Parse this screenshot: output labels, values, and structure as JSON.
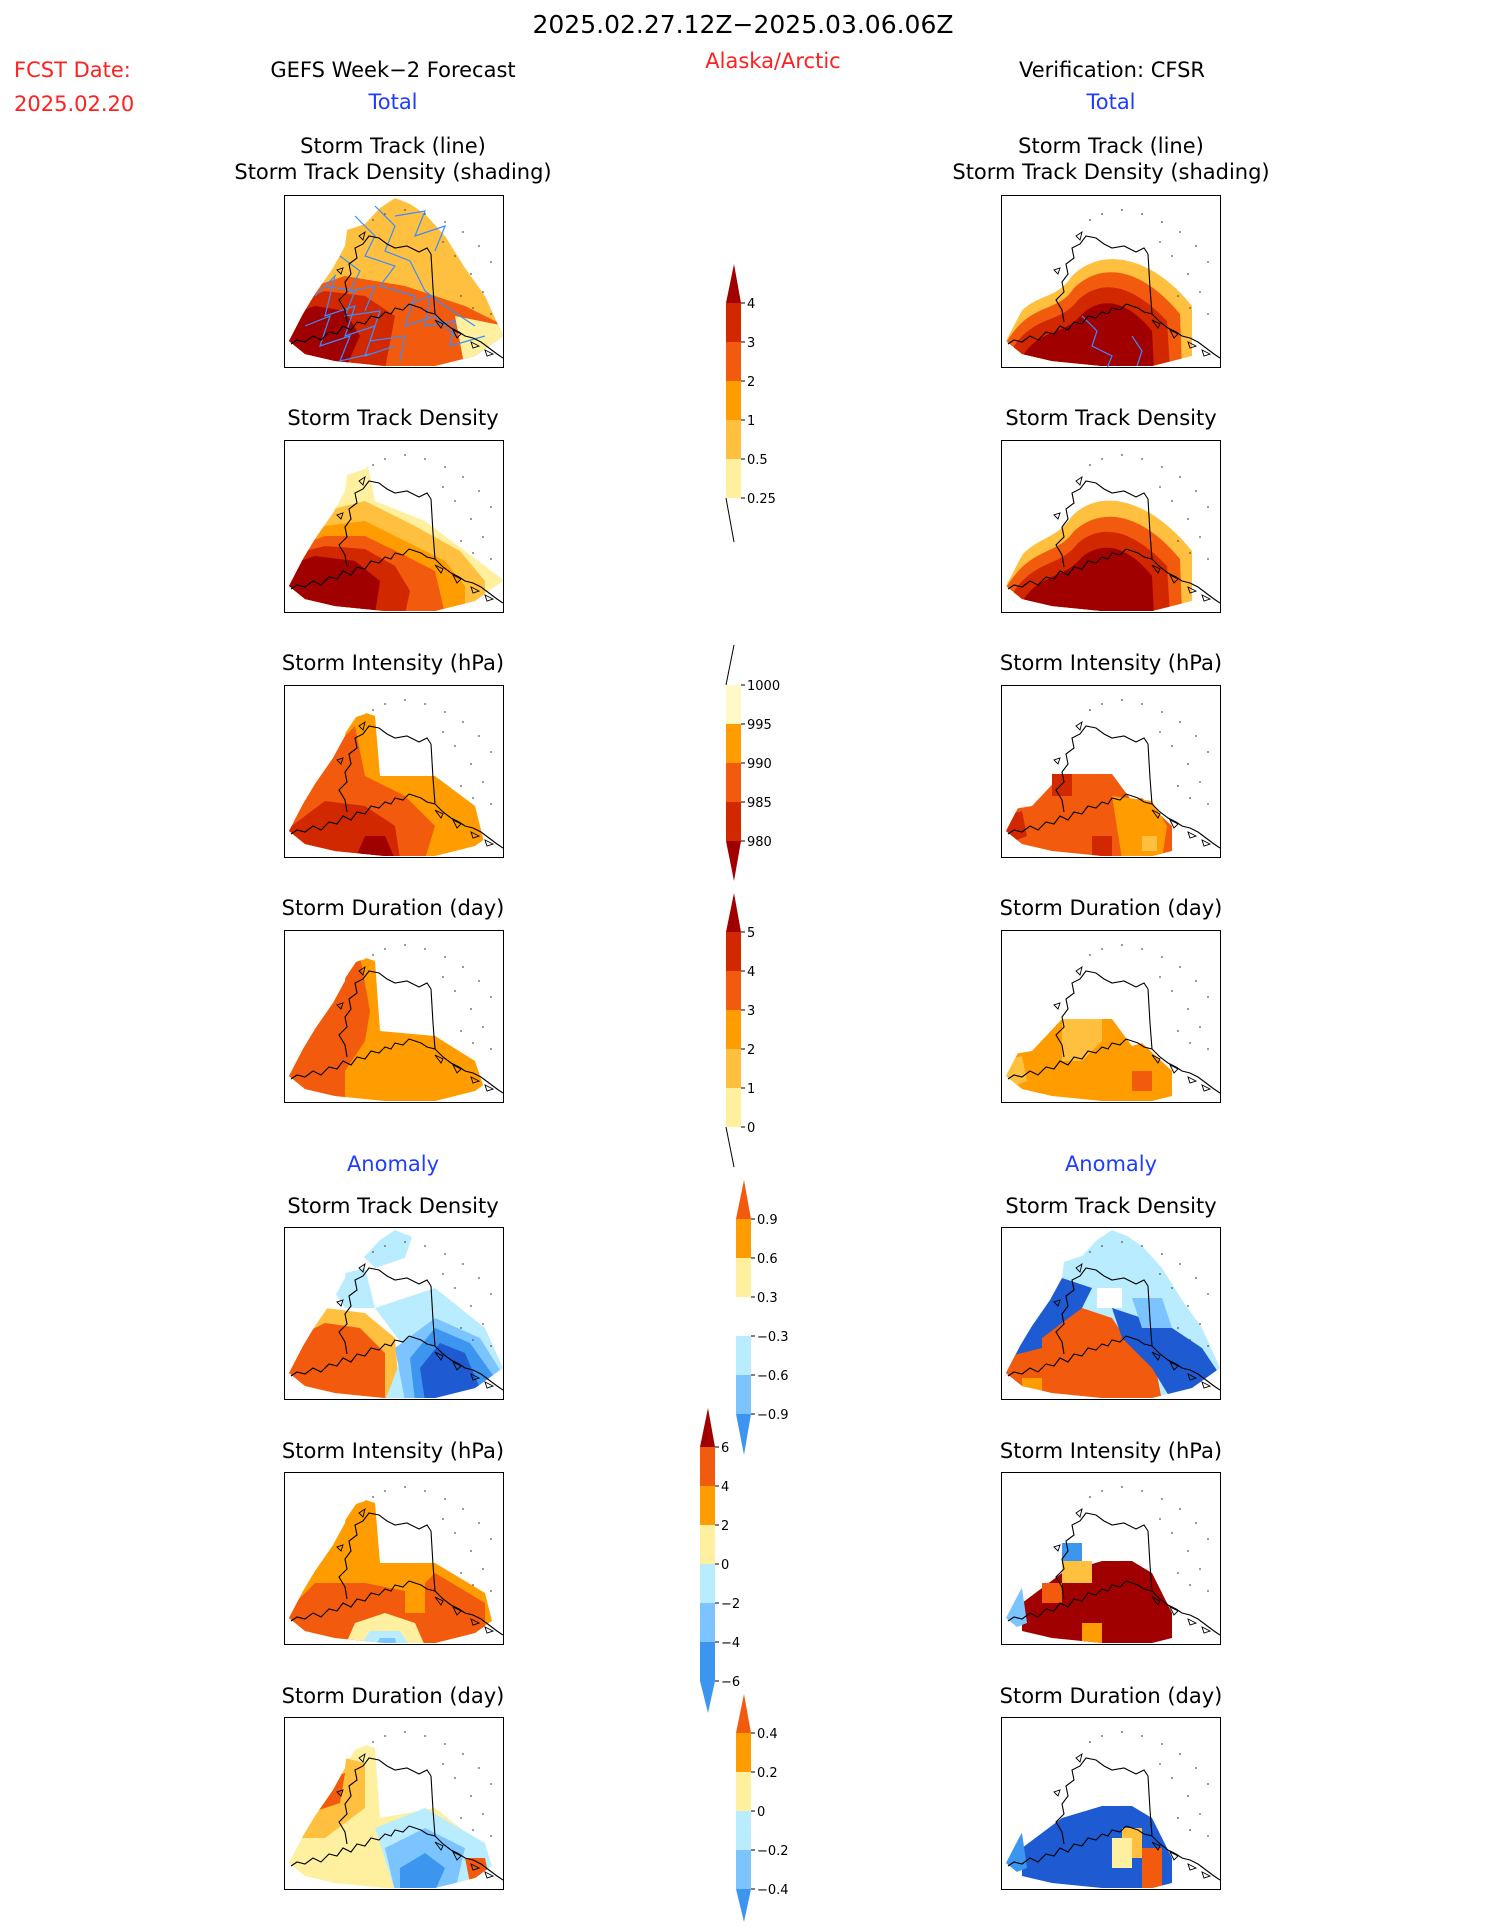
{
  "header": {
    "period": "2025.02.27.12Z−2025.03.06.06Z",
    "fcst_label": "FCST Date:",
    "fcst_date": "2025.02.20",
    "left_title": "GEFS Week−2 Forecast",
    "region": "Alaska/Arctic",
    "right_title": "Verification: CFSR",
    "left_section": "Total",
    "right_section": "Total"
  },
  "anomaly_headers": {
    "left": "Anomaly",
    "right": "Anomaly"
  },
  "panel_titles": {
    "track_line": "Storm Track (line)",
    "track_shading": "Storm Track Density (shading)",
    "density": "Storm Track Density",
    "intensity": "Storm Intensity (hPa)",
    "duration": "Storm Duration (day)"
  },
  "colors": {
    "dark_red": "#a00000",
    "red": "#d22800",
    "orange_red": "#f25a0e",
    "orange": "#ff9c00",
    "light_orange": "#ffc040",
    "pale_yellow": "#fff0a0",
    "cream": "#fff9c8",
    "light_blue": "#b9ecff",
    "mid_blue": "#7cc4ff",
    "blue": "#3c96f0",
    "dark_blue": "#1e5ad2",
    "track_line": "#3c8cff",
    "title_red": "#ff2020",
    "title_blue": "#1f3cff"
  },
  "colorbars": {
    "density": [
      "4",
      "3",
      "2",
      "1",
      "0.5",
      "0.25"
    ],
    "intensity": [
      "1000",
      "995",
      "990",
      "985",
      "980"
    ],
    "duration": [
      "5",
      "4",
      "3",
      "2",
      "1",
      "0"
    ],
    "density_anomaly": [
      "0.9",
      "0.6",
      "0.3",
      "−0.3",
      "−0.6",
      "−0.9"
    ],
    "intensity_anomaly": [
      "6",
      "4",
      "2",
      "0",
      "−2",
      "−4",
      "−6"
    ],
    "duration_anomaly": [
      "0.4",
      "0.2",
      "0",
      "−0.2",
      "−0.4"
    ]
  }
}
